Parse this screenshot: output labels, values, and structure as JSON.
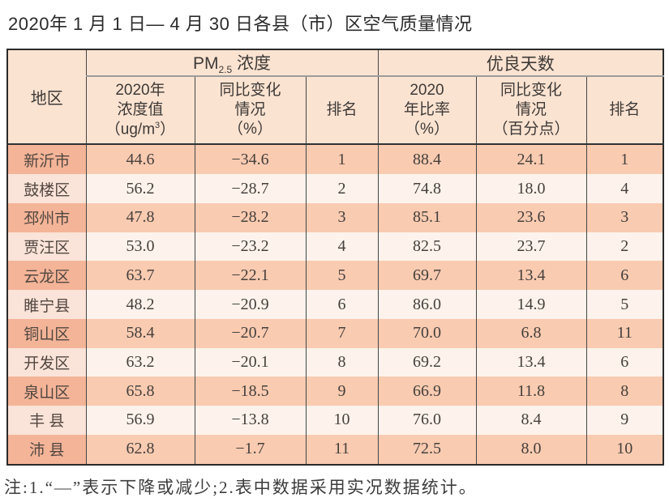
{
  "title": "2020年 1 月 1 日— 4 月 30 日各县（市）区空气质量情况",
  "note": "注:1.“—”表示下降或减少;2.表中数据采用实况数据统计。",
  "colors": {
    "header_bg": "#fbe3d1",
    "row_odd_region": "#f4b498",
    "row_odd_cell": "#f9cbb1",
    "row_even_region": "#fae3d8",
    "row_even_cell": "#fdf3ec",
    "border_dark": "#2a2a2a",
    "border_gray": "#9c9c9c"
  },
  "table": {
    "region_header": "地区",
    "pm_group": {
      "base": "PM",
      "sub": "2.5",
      "rest": " 浓度"
    },
    "good_group": "优良天数",
    "pm_value_header": {
      "line1": "2020年",
      "line2": "浓度值",
      "unit_pre": "（ug/m",
      "unit_sup": "3",
      "unit_post": "）"
    },
    "pm_change_header": {
      "line1": "同比变化",
      "line2": "情况",
      "line3": "（%）"
    },
    "pm_rank_header": "排名",
    "good_rate_header": {
      "line1": "2020",
      "line2": "年比率",
      "line3": "（%）"
    },
    "good_change_header": {
      "line1": "同比变化",
      "line2": "情况",
      "line3": "（百分点）"
    },
    "good_rank_header": "排名",
    "rows": [
      {
        "region": "新沂市",
        "pm_value": "44.6",
        "pm_change": "−34.6",
        "pm_rank": "1",
        "good_rate": "88.4",
        "good_change": "24.1",
        "good_rank": "1"
      },
      {
        "region": "鼓楼区",
        "pm_value": "56.2",
        "pm_change": "−28.7",
        "pm_rank": "2",
        "good_rate": "74.8",
        "good_change": "18.0",
        "good_rank": "4"
      },
      {
        "region": "邳州市",
        "pm_value": "47.8",
        "pm_change": "−28.2",
        "pm_rank": "3",
        "good_rate": "85.1",
        "good_change": "23.6",
        "good_rank": "3"
      },
      {
        "region": "贾汪区",
        "pm_value": "53.0",
        "pm_change": "−23.2",
        "pm_rank": "4",
        "good_rate": "82.5",
        "good_change": "23.7",
        "good_rank": "2"
      },
      {
        "region": "云龙区",
        "pm_value": "63.7",
        "pm_change": "−22.1",
        "pm_rank": "5",
        "good_rate": "69.7",
        "good_change": "13.4",
        "good_rank": "6"
      },
      {
        "region": "睢宁县",
        "pm_value": "48.2",
        "pm_change": "−20.9",
        "pm_rank": "6",
        "good_rate": "86.0",
        "good_change": "14.9",
        "good_rank": "5"
      },
      {
        "region": "铜山区",
        "pm_value": "58.4",
        "pm_change": "−20.7",
        "pm_rank": "7",
        "good_rate": "70.0",
        "good_change": "6.8",
        "good_rank": "11"
      },
      {
        "region": "开发区",
        "pm_value": "63.2",
        "pm_change": "−20.1",
        "pm_rank": "8",
        "good_rate": "69.2",
        "good_change": "13.4",
        "good_rank": "6"
      },
      {
        "region": "泉山区",
        "pm_value": "65.8",
        "pm_change": "−18.5",
        "pm_rank": "9",
        "good_rate": "66.9",
        "good_change": "11.8",
        "good_rank": "8"
      },
      {
        "region": "丰 县",
        "pm_value": "56.9",
        "pm_change": "−13.8",
        "pm_rank": "10",
        "good_rate": "76.0",
        "good_change": "8.4",
        "good_rank": "9"
      },
      {
        "region": "沛 县",
        "pm_value": "62.8",
        "pm_change": "−1.7",
        "pm_rank": "11",
        "good_rate": "72.5",
        "good_change": "8.0",
        "good_rank": "10"
      }
    ]
  }
}
